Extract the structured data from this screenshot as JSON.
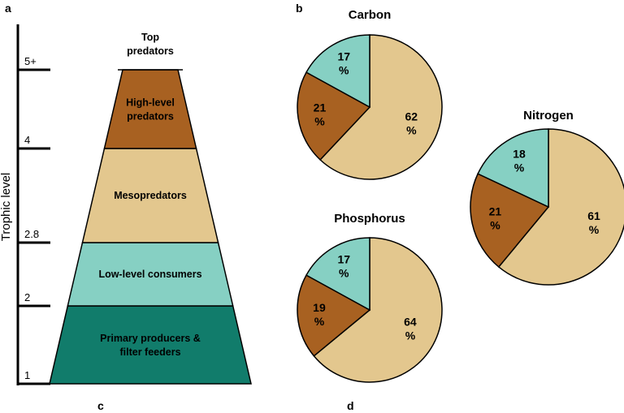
{
  "panel_labels": {
    "a": "a",
    "b": "b",
    "c": "c",
    "d": "d"
  },
  "colors": {
    "wedge_large": "#E3C78E",
    "wedge_mid": "#A86121",
    "wedge_small": "#86D0C3",
    "pyramid": [
      "#117C6B",
      "#86D0C3",
      "#E3C78E",
      "#A86121"
    ],
    "outline": "#000000"
  },
  "chart_data": [
    {
      "type": "bar",
      "subtype": "trophic-pyramid",
      "ylabel": "Trophic level",
      "ticks": [
        {
          "label": "1",
          "value": 1
        },
        {
          "label": "2",
          "value": 2
        },
        {
          "label": "2.8",
          "value": 2.8
        },
        {
          "label": "4",
          "value": 4
        },
        {
          "label": "5+",
          "value": 5
        }
      ],
      "ylim": [
        1,
        5
      ],
      "top_label": [
        "Top",
        "predators"
      ],
      "layers": [
        {
          "label": [
            "Primary producers &",
            "filter feeders"
          ],
          "from": 1,
          "to": 2,
          "light_text": false
        },
        {
          "label": [
            "Low-level consumers"
          ],
          "from": 2,
          "to": 2.8,
          "light_text": false
        },
        {
          "label": [
            "Mesopredators"
          ],
          "from": 2.8,
          "to": 4,
          "light_text": false
        },
        {
          "label": [
            "High-level",
            "predators"
          ],
          "from": 4,
          "to": 5,
          "light_text": false
        }
      ]
    },
    {
      "type": "pie",
      "title": "Carbon",
      "slices": [
        {
          "value": 62,
          "label": [
            "62",
            "%"
          ]
        },
        {
          "value": 21,
          "label": [
            "21",
            "%"
          ]
        },
        {
          "value": 17,
          "label": [
            "17",
            "%"
          ]
        }
      ]
    },
    {
      "type": "pie",
      "title": "Phosphorus",
      "slices": [
        {
          "value": 64,
          "label": [
            "64",
            "%"
          ]
        },
        {
          "value": 19,
          "label": [
            "19",
            "%"
          ]
        },
        {
          "value": 17,
          "label": [
            "17",
            "%"
          ]
        }
      ]
    },
    {
      "type": "pie",
      "title": "Nitrogen",
      "slices": [
        {
          "value": 61,
          "label": [
            "61",
            "%"
          ]
        },
        {
          "value": 21,
          "label": [
            "21",
            "%"
          ]
        },
        {
          "value": 18,
          "label": [
            "18",
            "%"
          ]
        }
      ]
    }
  ]
}
